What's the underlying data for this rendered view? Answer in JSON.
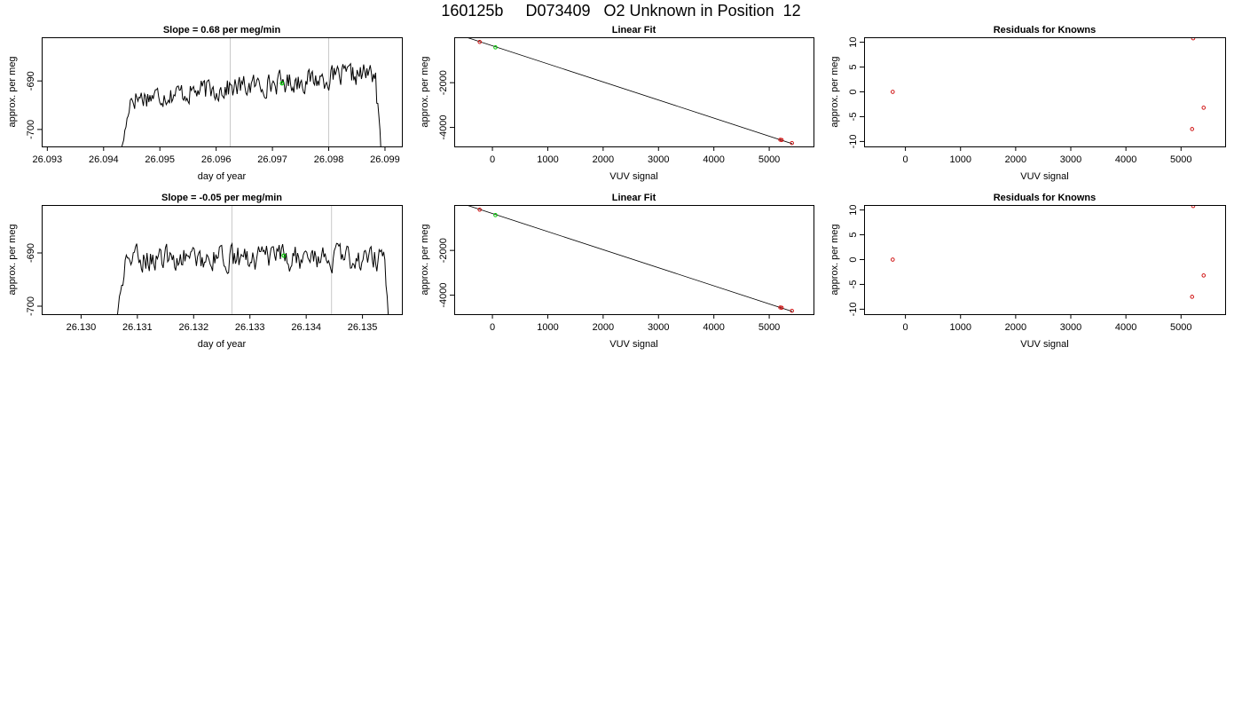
{
  "page": {
    "title": "160125b     D073409   O2 Unknown in Position  12"
  },
  "chart_data": [
    {
      "id": "ts1",
      "type": "line",
      "title": "Slope =  0.68  per meg/min",
      "xlabel": "day of year",
      "ylabel": "approx. per meg",
      "xlim": [
        26.0929,
        26.0993
      ],
      "ylim": [
        -703.5,
        -681.0
      ],
      "xticks": [
        26.093,
        26.094,
        26.095,
        26.096,
        26.097,
        26.098,
        26.099
      ],
      "xtick_labels": [
        "26.093",
        "26.094",
        "26.095",
        "26.096",
        "26.097",
        "26.098",
        "26.099"
      ],
      "yticks": [
        -700,
        -690
      ],
      "ytick_labels": [
        "-700",
        "-690"
      ],
      "vlines": [
        26.09625,
        26.098
      ],
      "series_start": 26.0943,
      "series_end": 26.09895,
      "highlight": {
        "x": 26.09717,
        "y": -690.5,
        "color": "#00cc00"
      },
      "line_color": "#000000",
      "vline_color": "#c8c8c8"
    },
    {
      "id": "fit1",
      "type": "scatter",
      "title": "Linear Fit",
      "xlabel": "VUV signal",
      "ylabel": "approx. per meg",
      "xlim": [
        -690,
        5800
      ],
      "ylim": [
        -4850,
        30
      ],
      "xticks": [
        0,
        1000,
        2000,
        3000,
        4000,
        5000
      ],
      "xtick_labels": [
        "0",
        "1000",
        "2000",
        "3000",
        "4000",
        "5000"
      ],
      "yticks": [
        -4000,
        -2000
      ],
      "ytick_labels": [
        "-4000",
        "-2000"
      ],
      "fit_line": {
        "x": [
          -520,
          5420
        ],
        "y": [
          70,
          -4730
        ]
      },
      "points_red": [
        {
          "x": -230,
          "y": -180
        },
        {
          "x": 5200,
          "y": -4550
        },
        {
          "x": 5225,
          "y": -4560
        },
        {
          "x": 5410,
          "y": -4700
        }
      ],
      "points_green": [
        {
          "x": 55,
          "y": -420
        }
      ]
    },
    {
      "id": "res1",
      "type": "scatter",
      "title": "Residuals for Knowns",
      "xlabel": "VUV signal",
      "ylabel": "approx. per meg",
      "xlim": [
        -750,
        5800
      ],
      "ylim": [
        -11,
        11
      ],
      "xticks": [
        0,
        1000,
        2000,
        3000,
        4000,
        5000
      ],
      "xtick_labels": [
        "0",
        "1000",
        "2000",
        "3000",
        "4000",
        "5000"
      ],
      "yticks": [
        -10,
        -5,
        0,
        5,
        10
      ],
      "ytick_labels": [
        "-10",
        "-5",
        "0",
        "5",
        "10"
      ],
      "points_red": [
        {
          "x": -230,
          "y": 0.0
        },
        {
          "x": 5220,
          "y": 10.8
        },
        {
          "x": 5200,
          "y": -7.5
        },
        {
          "x": 5410,
          "y": -3.2
        }
      ]
    },
    {
      "id": "ts2",
      "type": "line",
      "title": "Slope =  -0.05  per meg/min",
      "xlabel": "day of year",
      "ylabel": "approx. per meg",
      "xlim": [
        26.1293,
        26.1357
      ],
      "ylim": [
        -701.5,
        -681.0
      ],
      "xticks": [
        26.13,
        26.131,
        26.132,
        26.133,
        26.134,
        26.135
      ],
      "xtick_labels": [
        "26.130",
        "26.131",
        "26.132",
        "26.133",
        "26.134",
        "26.135"
      ],
      "yticks": [
        -700,
        -690
      ],
      "ytick_labels": [
        "-700",
        "-690"
      ],
      "vlines": [
        26.13268,
        26.13445
      ],
      "series_start": 26.1306,
      "series_end": 26.1355,
      "highlight": {
        "x": 26.1336,
        "y": -690.5,
        "color": "#00cc00"
      },
      "line_color": "#000000",
      "vline_color": "#c8c8c8"
    },
    {
      "id": "fit2",
      "type": "scatter",
      "title": "Linear Fit",
      "xlabel": "VUV signal",
      "ylabel": "approx. per meg",
      "xlim": [
        -690,
        5800
      ],
      "ylim": [
        -4850,
        30
      ],
      "xticks": [
        0,
        1000,
        2000,
        3000,
        4000,
        5000
      ],
      "xtick_labels": [
        "0",
        "1000",
        "2000",
        "3000",
        "4000",
        "5000"
      ],
      "yticks": [
        -4000,
        -2000
      ],
      "ytick_labels": [
        "-4000",
        "-2000"
      ],
      "fit_line": {
        "x": [
          -520,
          5420
        ],
        "y": [
          70,
          -4730
        ]
      },
      "points_red": [
        {
          "x": -230,
          "y": -180
        },
        {
          "x": 5200,
          "y": -4550
        },
        {
          "x": 5225,
          "y": -4560
        },
        {
          "x": 5410,
          "y": -4700
        }
      ],
      "points_green": [
        {
          "x": 55,
          "y": -420
        }
      ]
    },
    {
      "id": "res2",
      "type": "scatter",
      "title": "Residuals for Knowns",
      "xlabel": "VUV signal",
      "ylabel": "approx. per meg",
      "xlim": [
        -750,
        5800
      ],
      "ylim": [
        -11,
        11
      ],
      "xticks": [
        0,
        1000,
        2000,
        3000,
        4000,
        5000
      ],
      "xtick_labels": [
        "0",
        "1000",
        "2000",
        "3000",
        "4000",
        "5000"
      ],
      "yticks": [
        -10,
        -5,
        0,
        5,
        10
      ],
      "ytick_labels": [
        "-10",
        "-5",
        "0",
        "5",
        "10"
      ],
      "points_red": [
        {
          "x": -230,
          "y": 0.0
        },
        {
          "x": 5220,
          "y": 10.8
        },
        {
          "x": 5200,
          "y": -7.5
        },
        {
          "x": 5410,
          "y": -3.2
        }
      ]
    }
  ]
}
